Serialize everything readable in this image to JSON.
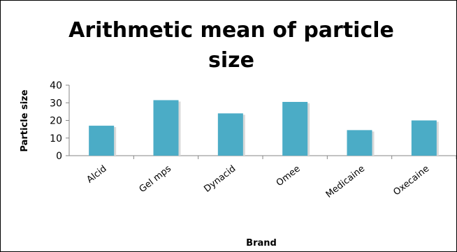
{
  "chart_data": {
    "type": "bar",
    "title_lines": [
      "Arithmetic mean of particle",
      "size"
    ],
    "xlabel": "Brand",
    "ylabel": "Particle size",
    "ylim": [
      0,
      40
    ],
    "yticks": [
      "0",
      "10",
      "20",
      "30",
      "40"
    ],
    "categories": [
      "Alcid",
      "Gel mps",
      "Dynacid",
      "Omee",
      "Medicaine",
      "Oxecaine"
    ],
    "values": [
      17,
      31.5,
      24,
      30.5,
      14.5,
      20
    ],
    "bar_color": "#4BACC6",
    "grid": false,
    "legend": "none"
  }
}
